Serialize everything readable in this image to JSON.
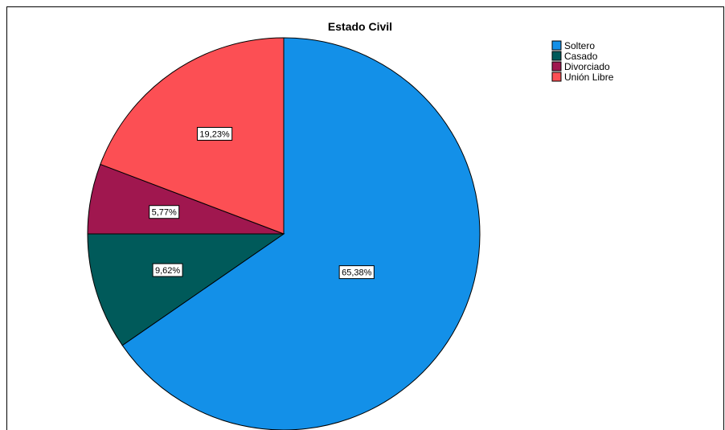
{
  "chart_data": {
    "type": "pie",
    "title": "Estado Civil",
    "categories": [
      "Soltero",
      "Casado",
      "Divorciado",
      "Unión Libre"
    ],
    "values": [
      65.38,
      9.62,
      5.77,
      19.23
    ],
    "value_labels": [
      "65,38%",
      "9,62%",
      "5,77%",
      "19,23%"
    ],
    "colors": [
      "#1390e8",
      "#005a5a",
      "#a0174f",
      "#fc4f54"
    ],
    "legend_position": "top-right",
    "start_angle_deg": 0,
    "direction": "clockwise"
  }
}
